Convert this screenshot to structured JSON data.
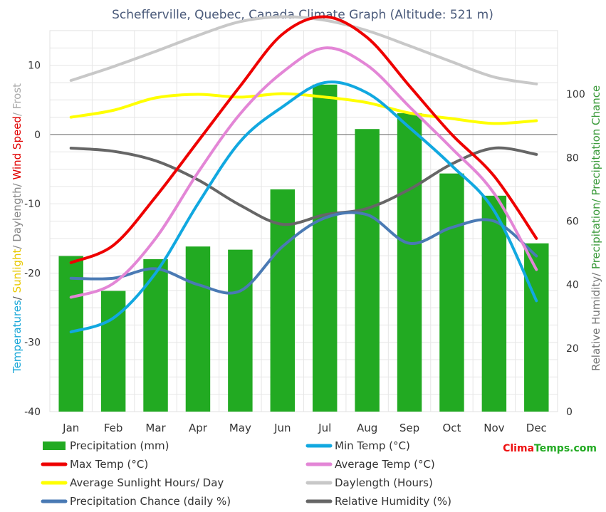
{
  "chart_data": {
    "type": "bar-line-combo",
    "title": "Schefferville, Quebec, Canada Climate Graph (Altitude: 521 m)",
    "months": [
      "Jan",
      "Feb",
      "Mar",
      "Apr",
      "May",
      "Jun",
      "Jul",
      "Aug",
      "Sep",
      "Oct",
      "Nov",
      "Dec"
    ],
    "left_axis": {
      "ylim": [
        -40,
        15
      ],
      "ticks": [
        -40,
        -30,
        -20,
        -10,
        0,
        10
      ],
      "title_parts": [
        {
          "text": "Temperatures",
          "color": "#1aa7d8"
        },
        {
          "text": "/ ",
          "color": "#555555"
        },
        {
          "text": "Sunlight",
          "color": "#e8c800"
        },
        {
          "text": "/ Daylength/ ",
          "color": "#888888"
        },
        {
          "text": "Wind Speed",
          "color": "#e00000"
        },
        {
          "text": "/ Frost",
          "color": "#aaaaaa"
        }
      ]
    },
    "right_axis": {
      "ylim": [
        0,
        120
      ],
      "ticks": [
        0,
        20,
        40,
        60,
        80,
        100
      ],
      "title_parts": [
        {
          "text": "Relative Humidity/ ",
          "color": "#777777"
        },
        {
          "text": "Precipitation/ Precipitation Chance",
          "color": "#3a9a3a"
        }
      ]
    },
    "series": [
      {
        "name": "Precipitation (mm)",
        "kind": "bar",
        "axis": "right",
        "color": "#22aa22",
        "values": [
          49,
          38,
          48,
          52,
          51,
          70,
          103,
          89,
          94,
          75,
          68,
          53
        ]
      },
      {
        "name": "Min Temp (°C)",
        "kind": "line",
        "axis": "left",
        "color": "#11a8e0",
        "values": [
          -28.5,
          -26.5,
          -20,
          -10,
          -1,
          4,
          7.5,
          6,
          1,
          -4.5,
          -11,
          -24
        ]
      },
      {
        "name": "Max Temp (°C)",
        "kind": "line",
        "axis": "left",
        "color": "#ee0000",
        "values": [
          -18.5,
          -16,
          -9,
          -1,
          7,
          14.5,
          17,
          14,
          7,
          0,
          -6,
          -15
        ]
      },
      {
        "name": "Average Temp (°C)",
        "kind": "line",
        "axis": "left",
        "color": "#e386d6",
        "values": [
          -23.5,
          -21.5,
          -15,
          -5.5,
          3,
          9,
          12.5,
          10,
          4,
          -2,
          -8.5,
          -19.5
        ]
      },
      {
        "name": "Average Sunlight Hours/ Day",
        "kind": "line",
        "axis": "left",
        "color": "#ffff00",
        "values": [
          2.5,
          3.5,
          5.3,
          5.8,
          5.4,
          5.9,
          5.4,
          4.6,
          3.1,
          2.3,
          1.6,
          2
        ]
      },
      {
        "name": "Daylength (Hours)",
        "kind": "line",
        "axis": "left",
        "color": "#c8c8c8",
        "values": [
          7.8,
          9.8,
          12,
          14.3,
          16.3,
          17,
          16.5,
          15,
          12.8,
          10.5,
          8.3,
          7.3
        ]
      },
      {
        "name": "Precipitation Chance (daily %)",
        "kind": "line",
        "axis": "right",
        "color": "#4a7ab4",
        "values": [
          42,
          42,
          45,
          40,
          38,
          52,
          61,
          62,
          53,
          58,
          60,
          49
        ]
      },
      {
        "name": "Relative Humidity (%)",
        "kind": "line",
        "axis": "right",
        "color": "#666666",
        "values": [
          83,
          82,
          79,
          73,
          65,
          59,
          62,
          64,
          70,
          78,
          83,
          81
        ]
      }
    ],
    "legend_layout": "two-columns-bottom"
  },
  "brand": {
    "part1": "Clima",
    "part2": "Temps",
    "part3": ".com",
    "color1": "#ee1111",
    "color2": "#22aa22"
  }
}
